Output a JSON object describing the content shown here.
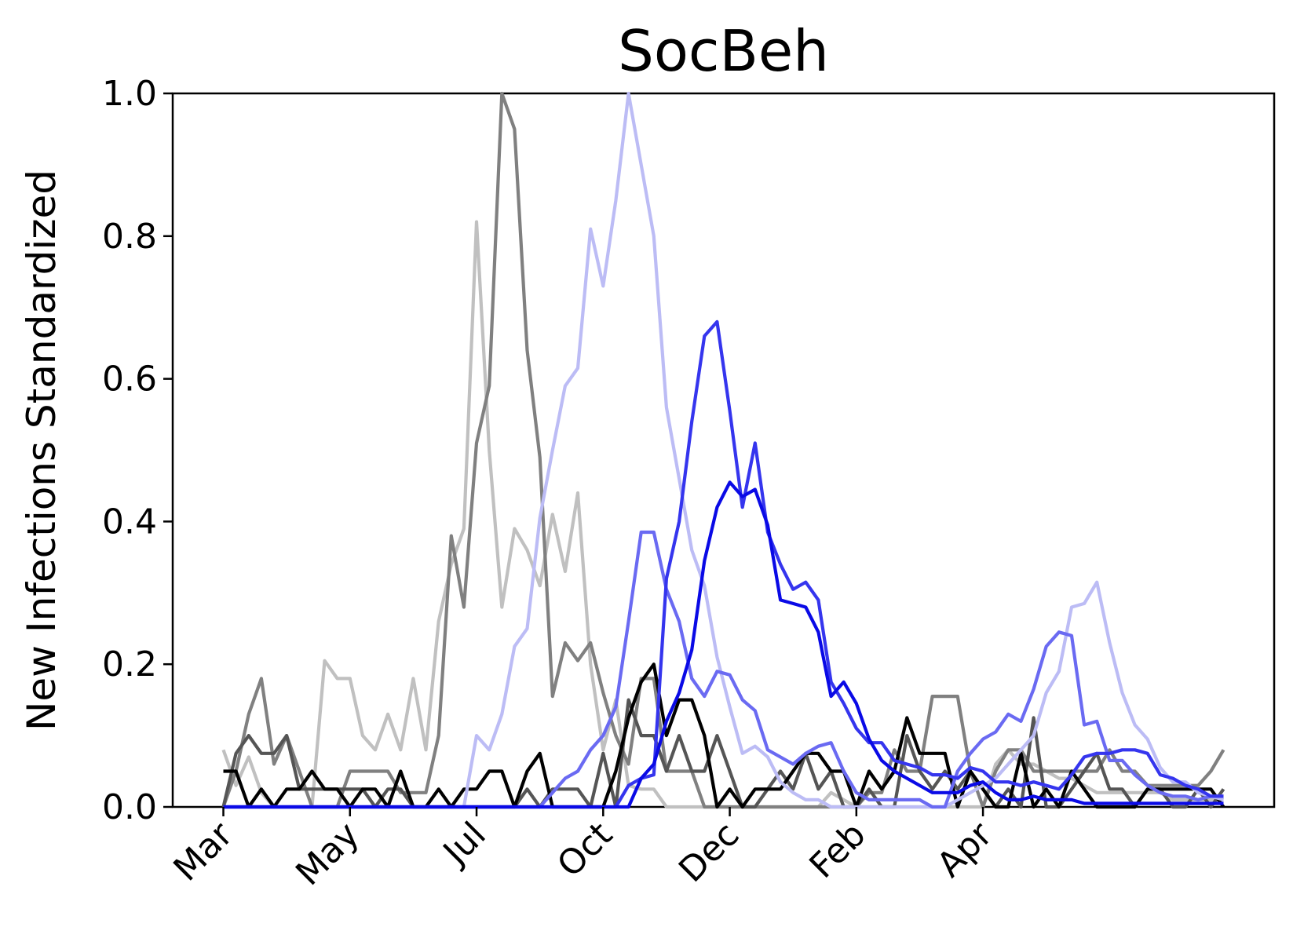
{
  "chart_data": {
    "type": "line",
    "title": "SocBeh",
    "xlabel": "",
    "ylabel": "New Infections Standardized",
    "ylim": [
      0,
      1
    ],
    "xlim": [
      -4,
      83
    ],
    "yticks": [
      "0.0",
      "0.2",
      "0.4",
      "0.6",
      "0.8",
      "1.0"
    ],
    "xticks": [
      {
        "label": "Mar",
        "x": 0
      },
      {
        "label": "May",
        "x": 10
      },
      {
        "label": "Jul",
        "x": 20
      },
      {
        "label": "Oct",
        "x": 30
      },
      {
        "label": "Dec",
        "x": 40
      },
      {
        "label": "Feb",
        "x": 50
      },
      {
        "label": "Apr",
        "x": 60
      }
    ],
    "grid": false,
    "legend": "none",
    "x": [
      0,
      1,
      2,
      3,
      4,
      5,
      6,
      7,
      8,
      9,
      10,
      11,
      12,
      13,
      14,
      15,
      16,
      17,
      18,
      19,
      20,
      21,
      22,
      23,
      24,
      25,
      26,
      27,
      28,
      29,
      30,
      31,
      32,
      33,
      34,
      35,
      36,
      37,
      38,
      39,
      40,
      41,
      42,
      43,
      44,
      45,
      46,
      47,
      48,
      49,
      50,
      51,
      52,
      53,
      54,
      55,
      56,
      57,
      58,
      59,
      60,
      61,
      62,
      63,
      64,
      65,
      66,
      67,
      68,
      69,
      70,
      71,
      72,
      73,
      74,
      75,
      76,
      77,
      78,
      79
    ],
    "series": [
      {
        "color": "#c0c0c0",
        "values": [
          0.08,
          0.03,
          0.07,
          0.02,
          0.0,
          0.0,
          0.0,
          0.0,
          0.205,
          0.18,
          0.18,
          0.1,
          0.08,
          0.13,
          0.08,
          0.18,
          0.08,
          0.26,
          0.34,
          0.39,
          0.82,
          0.5,
          0.28,
          0.39,
          0.36,
          0.31,
          0.41,
          0.33,
          0.44,
          0.2,
          0.08,
          0.15,
          0.03,
          0.025,
          0.025,
          0.0,
          0.0,
          0.0,
          0.0,
          0.0,
          0.0,
          0.0,
          0.0,
          0.0,
          0.0,
          0.0,
          0.0,
          0.0,
          0.02,
          0.01,
          0.0,
          0.0,
          0.0,
          0.0,
          0.0,
          0.0,
          0.0,
          0.0,
          0.0,
          0.0,
          0.0,
          0.06,
          0.08,
          0.06,
          0.06,
          0.05,
          0.04,
          0.04,
          0.03,
          0.02,
          0.02,
          0.02,
          0.02,
          0.02,
          0.02,
          0.01,
          0.01,
          0.01,
          0.01,
          0.01
        ]
      },
      {
        "color": "#808080",
        "values": [
          0.0,
          0.05,
          0.13,
          0.18,
          0.06,
          0.1,
          0.05,
          0.0,
          0.0,
          0.0,
          0.05,
          0.05,
          0.05,
          0.05,
          0.02,
          0.02,
          0.02,
          0.1,
          0.38,
          0.28,
          0.51,
          0.59,
          1.0,
          0.95,
          0.64,
          0.49,
          0.155,
          0.23,
          0.205,
          0.23,
          0.16,
          0.1,
          0.06,
          0.18,
          0.18,
          0.05,
          0.05,
          0.05,
          0.0,
          0.0,
          0.0,
          0.0,
          0.0,
          0.0,
          0.0,
          0.0,
          0.0,
          0.0,
          0.0,
          0.0,
          0.0,
          0.02,
          0.02,
          0.08,
          0.05,
          0.05,
          0.155,
          0.155,
          0.155,
          0.05,
          0.0,
          0.05,
          0.08,
          0.08,
          0.05,
          0.05,
          0.05,
          0.05,
          0.05,
          0.05,
          0.08,
          0.05,
          0.05,
          0.03,
          0.03,
          0.03,
          0.03,
          0.03,
          0.05,
          0.08
        ]
      },
      {
        "color": "#555555",
        "values": [
          0.0,
          0.075,
          0.1,
          0.075,
          0.075,
          0.1,
          0.025,
          0.025,
          0.025,
          0.025,
          0.025,
          0.025,
          0.0,
          0.025,
          0.025,
          0.0,
          0.0,
          0.0,
          0.0,
          0.0,
          0.0,
          0.0,
          0.0,
          0.0,
          0.025,
          0.0,
          0.025,
          0.025,
          0.025,
          0.0,
          0.075,
          0.0,
          0.15,
          0.1,
          0.1,
          0.05,
          0.1,
          0.05,
          0.05,
          0.1,
          0.05,
          0.0,
          0.0,
          0.025,
          0.05,
          0.025,
          0.075,
          0.025,
          0.05,
          0.0,
          0.0,
          0.025,
          0.0,
          0.0,
          0.1,
          0.05,
          0.025,
          0.05,
          0.025,
          0.05,
          0.025,
          0.0,
          0.025,
          0.0,
          0.125,
          0.0,
          0.0,
          0.025,
          0.05,
          0.075,
          0.025,
          0.025,
          0.0,
          0.025,
          0.025,
          0.0,
          0.0,
          0.025,
          0.0,
          0.025
        ]
      },
      {
        "color": "#000000",
        "values": [
          0.05,
          0.05,
          0.0,
          0.025,
          0.0,
          0.025,
          0.025,
          0.05,
          0.025,
          0.025,
          0.0,
          0.025,
          0.025,
          0.0,
          0.05,
          0.0,
          0.0,
          0.025,
          0.0,
          0.025,
          0.025,
          0.05,
          0.05,
          0.0,
          0.05,
          0.075,
          0.0,
          0.0,
          0.0,
          0.0,
          0.0,
          0.05,
          0.125,
          0.175,
          0.2,
          0.1,
          0.15,
          0.15,
          0.1,
          0.0,
          0.025,
          0.0,
          0.025,
          0.025,
          0.025,
          0.05,
          0.075,
          0.075,
          0.05,
          0.05,
          0.0,
          0.05,
          0.025,
          0.05,
          0.125,
          0.075,
          0.075,
          0.075,
          0.0,
          0.05,
          0.025,
          0.0,
          0.0,
          0.075,
          0.0,
          0.025,
          0.0,
          0.05,
          0.025,
          0.0,
          0.0,
          0.0,
          0.0,
          0.025,
          0.025,
          0.025,
          0.025,
          0.025,
          0.025,
          0.0
        ]
      },
      {
        "color": "#bcbcf5",
        "values": [
          0.0,
          0.0,
          0.0,
          0.0,
          0.0,
          0.0,
          0.0,
          0.0,
          0.0,
          0.0,
          0.0,
          0.0,
          0.0,
          0.0,
          0.0,
          0.0,
          0.0,
          0.0,
          0.0,
          0.0,
          0.1,
          0.08,
          0.13,
          0.225,
          0.25,
          0.405,
          0.5,
          0.59,
          0.615,
          0.81,
          0.73,
          0.85,
          1.0,
          0.9,
          0.8,
          0.56,
          0.46,
          0.36,
          0.31,
          0.21,
          0.14,
          0.075,
          0.085,
          0.07,
          0.035,
          0.02,
          0.01,
          0.01,
          0.0,
          0.0,
          0.0,
          0.0,
          0.0,
          0.0,
          0.0,
          0.0,
          0.0,
          0.0,
          0.01,
          0.02,
          0.03,
          0.04,
          0.06,
          0.08,
          0.1,
          0.16,
          0.19,
          0.28,
          0.285,
          0.315,
          0.23,
          0.16,
          0.115,
          0.095,
          0.055,
          0.035,
          0.035,
          0.02,
          0.015,
          0.01
        ]
      },
      {
        "color": "#6a6af2",
        "values": [
          0.0,
          0.0,
          0.0,
          0.0,
          0.0,
          0.0,
          0.0,
          0.0,
          0.0,
          0.0,
          0.0,
          0.0,
          0.0,
          0.0,
          0.0,
          0.0,
          0.0,
          0.0,
          0.0,
          0.0,
          0.0,
          0.0,
          0.0,
          0.0,
          0.0,
          0.0,
          0.02,
          0.04,
          0.05,
          0.08,
          0.1,
          0.14,
          0.26,
          0.385,
          0.385,
          0.305,
          0.26,
          0.18,
          0.155,
          0.19,
          0.185,
          0.15,
          0.135,
          0.08,
          0.07,
          0.06,
          0.075,
          0.085,
          0.09,
          0.05,
          0.02,
          0.01,
          0.01,
          0.01,
          0.01,
          0.01,
          0.0,
          0.0,
          0.05,
          0.075,
          0.095,
          0.105,
          0.13,
          0.12,
          0.165,
          0.225,
          0.245,
          0.24,
          0.115,
          0.12,
          0.065,
          0.065,
          0.045,
          0.03,
          0.02,
          0.015,
          0.015,
          0.01,
          0.015,
          0.015
        ]
      },
      {
        "color": "#3535ee",
        "values": [
          0.0,
          0.0,
          0.0,
          0.0,
          0.0,
          0.0,
          0.0,
          0.0,
          0.0,
          0.0,
          0.0,
          0.0,
          0.0,
          0.0,
          0.0,
          0.0,
          0.0,
          0.0,
          0.0,
          0.0,
          0.0,
          0.0,
          0.0,
          0.0,
          0.0,
          0.0,
          0.0,
          0.0,
          0.0,
          0.0,
          0.0,
          0.0,
          0.03,
          0.04,
          0.045,
          0.32,
          0.4,
          0.54,
          0.66,
          0.68,
          0.555,
          0.42,
          0.51,
          0.385,
          0.34,
          0.305,
          0.315,
          0.29,
          0.175,
          0.145,
          0.11,
          0.09,
          0.09,
          0.065,
          0.06,
          0.055,
          0.045,
          0.045,
          0.04,
          0.055,
          0.05,
          0.035,
          0.035,
          0.03,
          0.035,
          0.03,
          0.025,
          0.045,
          0.07,
          0.075,
          0.075,
          0.08,
          0.08,
          0.075,
          0.045,
          0.04,
          0.03,
          0.025,
          0.015,
          0.015
        ]
      },
      {
        "color": "#0a0ae6",
        "values": [
          0.0,
          0.0,
          0.0,
          0.0,
          0.0,
          0.0,
          0.0,
          0.0,
          0.0,
          0.0,
          0.0,
          0.0,
          0.0,
          0.0,
          0.0,
          0.0,
          0.0,
          0.0,
          0.0,
          0.0,
          0.0,
          0.0,
          0.0,
          0.0,
          0.0,
          0.0,
          0.0,
          0.0,
          0.0,
          0.0,
          0.0,
          0.0,
          0.0,
          0.04,
          0.06,
          0.12,
          0.16,
          0.22,
          0.345,
          0.42,
          0.455,
          0.435,
          0.445,
          0.395,
          0.29,
          0.285,
          0.28,
          0.245,
          0.155,
          0.175,
          0.145,
          0.095,
          0.065,
          0.05,
          0.04,
          0.03,
          0.02,
          0.02,
          0.02,
          0.03,
          0.035,
          0.02,
          0.01,
          0.01,
          0.015,
          0.01,
          0.01,
          0.01,
          0.005,
          0.005,
          0.005,
          0.005,
          0.005,
          0.005,
          0.005,
          0.005,
          0.005,
          0.005,
          0.005,
          0.005
        ]
      }
    ]
  }
}
